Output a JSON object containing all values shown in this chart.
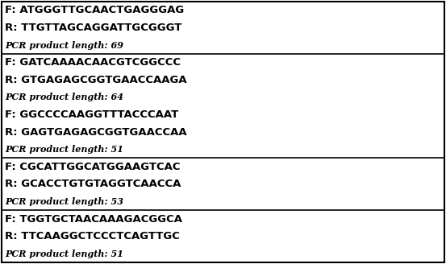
{
  "rows": [
    {
      "lines": [
        {
          "text": "F: ATGGGTTGCAACTGAGGGAG",
          "style": "FR"
        },
        {
          "text": "R: TTGTTAGCAGGATTGCGGGT",
          "style": "FR"
        },
        {
          "text": "PCR product length: 69",
          "style": "PCR"
        }
      ]
    },
    {
      "lines": [
        {
          "text": "F: GATCAAAACAACGTCGGCCC",
          "style": "FR"
        },
        {
          "text": "R: GTGAGAGCGGTGAACCAAGA",
          "style": "FR"
        },
        {
          "text": "PCR product length: 64",
          "style": "PCR"
        },
        {
          "text": "F: GGCCCCAAGGTTTACCCAAT",
          "style": "FR"
        },
        {
          "text": "R: GAGTGAGAGCGGTGAACCAA",
          "style": "FR"
        },
        {
          "text": "PCR product length: 51",
          "style": "PCR"
        }
      ]
    },
    {
      "lines": [
        {
          "text": "F: CGCATTGGCATGGAAGTCAC",
          "style": "FR"
        },
        {
          "text": "R: GCACCTGTGTAGGTCAACCA",
          "style": "FR"
        },
        {
          "text": "PCR product length: 53",
          "style": "PCR"
        }
      ]
    },
    {
      "lines": [
        {
          "text": "F: TGGTGCTAACAAAGACGGCA",
          "style": "FR"
        },
        {
          "text": "R: TTCAAGGCTCCCTCAGTTGC",
          "style": "FR"
        },
        {
          "text": "PCR product length: 51",
          "style": "PCR"
        }
      ]
    }
  ],
  "bg_color": "#ffffff",
  "border_color": "#000000",
  "text_color": "#000000",
  "fr_fontsize": 9.5,
  "pcr_fontsize": 8.0,
  "fig_width": 5.53,
  "fig_height": 3.28,
  "dpi": 100
}
